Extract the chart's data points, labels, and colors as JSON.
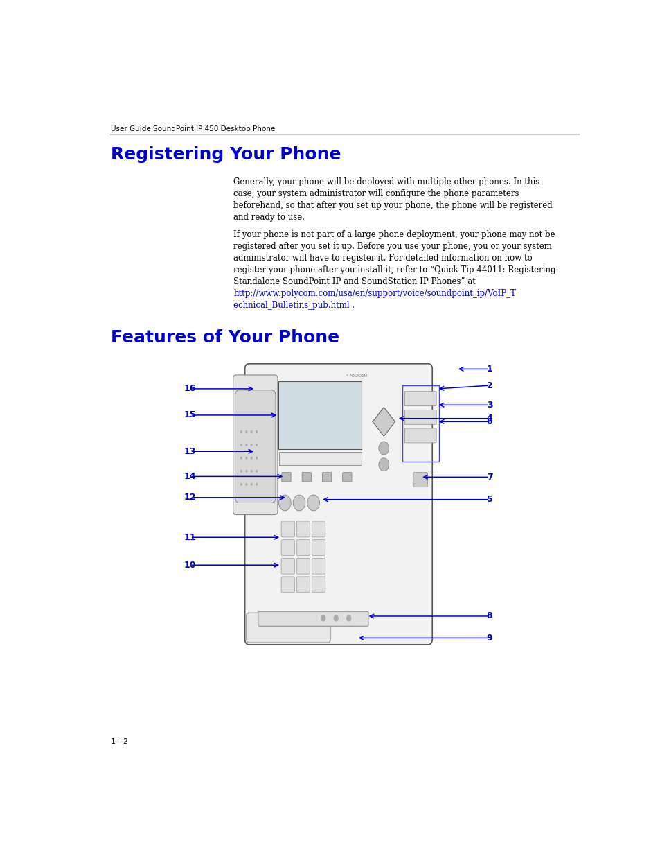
{
  "page_width": 9.54,
  "page_height": 12.35,
  "bg_color": "#ffffff",
  "header_text": "User Guide SoundPoint IP 450 Desktop Phone",
  "header_color": "#000000",
  "header_fontsize": 7.5,
  "header_line_color": "#cccccc",
  "section1_title": "Registering Your Phone",
  "section1_title_color": "#0000cc",
  "section1_title_fontsize": 18,
  "section1_para1": "Generally, your phone will be deployed with multiple other phones. In this\ncase, your system administrator will configure the phone parameters\nbeforehand, so that after you set up your phone, the phone will be registered\nand ready to use.",
  "section1_para2_normal": "If your phone is not part of a large phone deployment, your phone may not be\nregistered after you set it up. Before you use your phone, you or your system\nadministrator will have to register it. For detailed information on how to\nregister your phone after you install it, refer to “Quick Tip 44011: Registering\nStandalone SoundPoint IP and SoundStation IP Phones” at",
  "section1_link": "http://www.polycom.com/usa/en/support/voice/soundpoint_ip/VoIP_T\nechnical_Bulletins_pub.html",
  "section1_link_suffix": " .",
  "section1_link_color": "#0000cc",
  "section2_title": "Features of Your Phone",
  "section2_title_color": "#0000cc",
  "section2_title_fontsize": 18,
  "body_fontsize": 8.5,
  "body_color": "#000000",
  "footer_text": "1 - 2",
  "footer_fontsize": 8,
  "blue_label_color": "#0000cc"
}
